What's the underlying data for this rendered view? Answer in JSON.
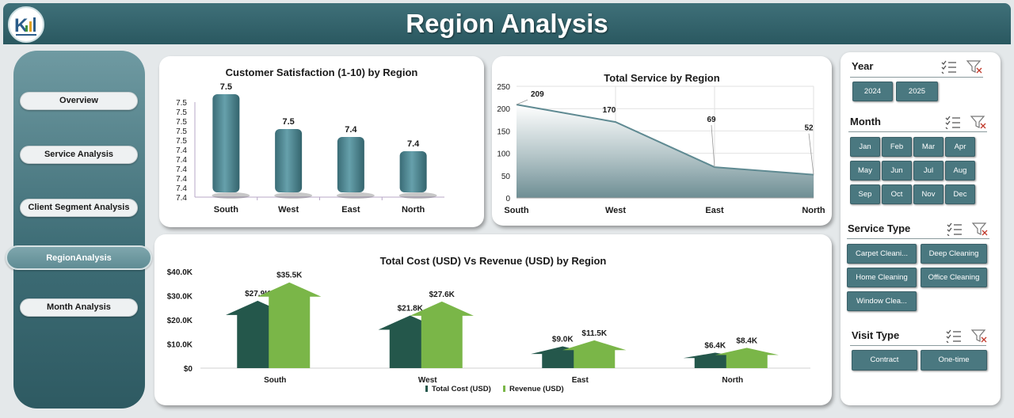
{
  "header": {
    "title": "Region Analysis"
  },
  "sidebar": {
    "items": [
      {
        "label": "Overview",
        "active": false
      },
      {
        "label": "Service Analysis",
        "active": false
      },
      {
        "label": "Client Segment Analysis",
        "active": false
      },
      {
        "label": "RegionAnalysis",
        "active": true
      },
      {
        "label": "Month Analysis",
        "active": false
      }
    ]
  },
  "chart_data": [
    {
      "type": "bar",
      "title": "Customer Satisfaction (1-10) by Region",
      "categories": [
        "South",
        "West",
        "East",
        "North"
      ],
      "values": [
        7.5,
        7.5,
        7.4,
        7.4
      ],
      "data_labels": [
        "7.5",
        "7.5",
        "7.4",
        "7.4"
      ],
      "ytick_labels": [
        "7.5",
        "7.5",
        "7.5",
        "7.5",
        "7.5",
        "7.4",
        "7.4",
        "7.4",
        "7.4",
        "7.4",
        "7.4"
      ],
      "grid": false,
      "color": "#4f8590"
    },
    {
      "type": "area",
      "title": "Total Service by Region",
      "categories": [
        "South",
        "West",
        "East",
        "North"
      ],
      "values": [
        209,
        170,
        69,
        52
      ],
      "ylim": [
        0,
        250
      ],
      "yticks": [
        0,
        50,
        100,
        150,
        200,
        250
      ],
      "grid": true,
      "color": "#5f8a92"
    },
    {
      "type": "bar",
      "title": "Total Cost (USD) Vs Revenue (USD) by Region",
      "categories": [
        "South",
        "West",
        "East",
        "North"
      ],
      "series": [
        {
          "name": "Total Cost (USD)",
          "values": [
            27.9,
            21.8,
            9.0,
            6.4
          ],
          "labels": [
            "$27.9K",
            "$21.8K",
            "$9.0K",
            "$6.4K"
          ],
          "color": "#24574b"
        },
        {
          "name": "Revenue (USD)",
          "values": [
            35.5,
            27.6,
            11.5,
            8.4
          ],
          "labels": [
            "$35.5K",
            "$27.6K",
            "$11.5K",
            "$8.4K"
          ],
          "color": "#7ab648"
        }
      ],
      "ylim": [
        0,
        40
      ],
      "ytick_labels": [
        "$0",
        "$10.0K",
        "$20.0K",
        "$30.0K",
        "$40.0K"
      ],
      "legend": "bottom",
      "grid": false
    }
  ],
  "slicers": {
    "year": {
      "title": "Year",
      "items": [
        "2024",
        "2025"
      ]
    },
    "month": {
      "title": "Month",
      "items": [
        "Jan",
        "Feb",
        "Mar",
        "Apr",
        "May",
        "Jun",
        "Jul",
        "Aug",
        "Sep",
        "Oct",
        "Nov",
        "Dec"
      ]
    },
    "service_type": {
      "title": "Service Type",
      "items": [
        "Carpet Cleani...",
        "Deep Cleaning",
        "Home Cleaning",
        "Office Cleaning",
        "Window Clea..."
      ]
    },
    "visit_type": {
      "title": "Visit Type",
      "items": [
        "Contract",
        "One-time"
      ]
    }
  },
  "icons": {
    "multiselect": "multi-select-icon",
    "clear_filter": "clear-filter-icon",
    "logo": "logo-icon"
  }
}
